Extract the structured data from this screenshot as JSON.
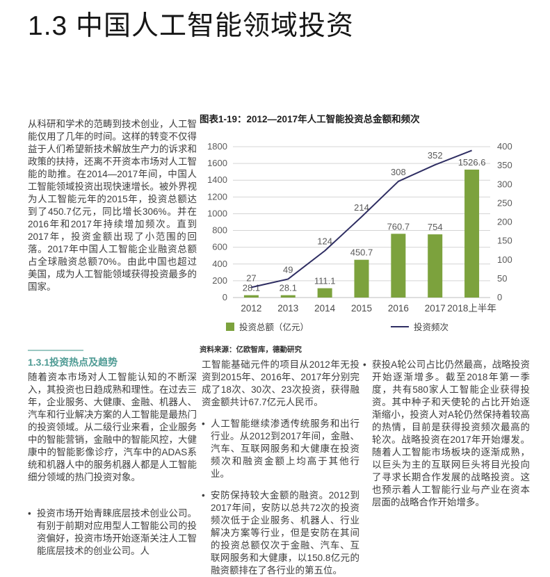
{
  "page": {
    "title": "1.3 中国人工智能领域投资"
  },
  "ui": {
    "bullet": "•"
  },
  "intro_paragraph": "从科研和学术的范畴到技术创业，人工智能仅用了几年的时间。这样的转变不仅得益于人们希望新技术解放生产力的诉求和政策的扶持，还离不开资本市场对人工智能的助推。在2014—2017年间，中国人工智能领域投资出现快速增长。被外界视为人工智能元年的2015年，投资总额达到了450.7亿元，同比增长306%。并在2016年和2017年持续增加频次。直到2017年，投资金额出现了小范围的回落。2017年中国人工智能企业融资总额占全球融资总额70%。由此中国也超过美国，成为人工智能领域获得投资最多的国家。",
  "chart": {
    "title": "图表1-19：2012—2017年人工智能投资总金额和频次",
    "legend": {
      "bar_label": "投资总额（亿元）",
      "line_label": "投资频次"
    },
    "source": "资料来源：亿欧智库，德勤研究"
  },
  "chart_data": {
    "type": "bar",
    "subtype": "bar+line combo, dual axis",
    "title": "图表1-19：2012—2017年人工智能投资总金额和频次",
    "categories": [
      "2012",
      "2013",
      "2014",
      "2015",
      "2016",
      "2017",
      "2018上半年"
    ],
    "series": [
      {
        "name": "投资总额（亿元）",
        "type": "bar",
        "axis": "left",
        "values": [
          28.1,
          28.1,
          111.1,
          450.7,
          760.7,
          754,
          1526.6
        ],
        "data_labels": [
          "28.1",
          "28.1",
          "111.1",
          "450.7",
          "760.7",
          "754",
          "1526.6"
        ],
        "color": "#7CA23D"
      },
      {
        "name": "投资频次",
        "type": "line",
        "axis": "right",
        "values": [
          27,
          49,
          124,
          214,
          308,
          352,
          390
        ],
        "data_labels": [
          "27",
          "49",
          "124",
          "214",
          "308",
          "352",
          ""
        ],
        "note": "2018上半年 endpoint is unlabeled in the figure; value ~390 estimated from right axis",
        "color": "#2E2D62"
      }
    ],
    "left_axis": {
      "min": 0,
      "max": 1800,
      "step": 200,
      "ticks": [
        0,
        200,
        400,
        600,
        800,
        1000,
        1200,
        1400,
        1600,
        1800
      ]
    },
    "right_axis": {
      "min": 0,
      "max": 400,
      "step": 50,
      "ticks": [
        0,
        50,
        100,
        150,
        200,
        250,
        300,
        350,
        400
      ]
    },
    "grid": true,
    "legend_position": "bottom",
    "source": "资料来源：亿欧智库，德勤研究"
  },
  "section": {
    "heading": "1.3.1投资热点及趋势",
    "col1_paragraph": "随着资本市场对人工智能认知的不断深入，其投资也日趋成熟和理性。在过去三年，企业服务、大健康、金融、机器人、汽车和行业解决方案的人工智能是最热门的投资领域。从二级行业来看，企业服务中的智能营销，金融中的智能风控，大健康中的智能影像诊疗，汽车中的ADAS系统和机器人中的服务机器人都是人工智能细分领域的热门投资对象。",
    "col1_bullet": "投资市场开始青睐底层技术创业公司。有别于前期对应用型人工智能公司的投资偏好，投资市场开始逐渐关注人工智能底层技术的创业公司。人",
    "col2_continuation": "工智能基础元件的项目从2012年无投资到2015年、2016年、2017年分别完成了18次、30次、23次投资，获得融资金额共计67.7亿元人民币。",
    "col2_bullets": [
      "人工智能继续渗透传统服务和出行行业。从2012到2017年间，金融、汽车、互联网服务和大健康在投资频次和融资金额上均高于其他行业。",
      "安防保持较大金额的融资。2012到2017年间，安防以总共72次的投资频次低于企业服务、机器人、行业解决方案等行业，但是安防在其间的投资总额仅次于金融、汽车、互联网服务和大健康，以150.8亿元的融资额排在了各行业的第五位。"
    ],
    "col3_bullet": "获投A轮公司占比仍然最高，战略投资开始逐渐增多。截至2018年第一季度，共有580家人工智能企业获得投资。其中种子和天使轮的占比开始逐渐缩小，投资人对A轮仍然保持着较高的热情，目前是获得投资频次最高的轮次。战略投资在2017年开始爆发。随着人工智能市场板块的逐渐成熟，以巨头为主的互联网巨头将目光投向了寻求长期合作发展的战略投资。这也预示着人工智能行业与产业在资本层面的战略合作开始增多。"
  },
  "colors": {
    "bar_green": "#7CA23D",
    "line_navy": "#2E2D62",
    "heading_teal": "#4F9B94",
    "divider_teal": "#9BC8C2",
    "grid_gray": "#D4D4D4",
    "axis_label_gray": "#595959",
    "body_text": "#3d3d3d"
  }
}
